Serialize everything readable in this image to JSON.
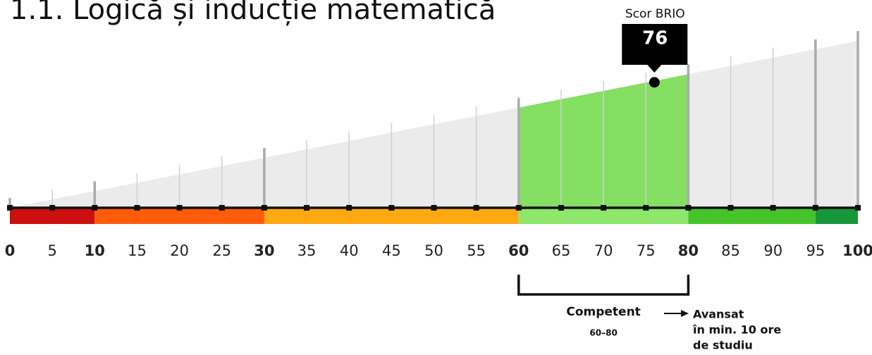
{
  "title": "1.1. Logică și inducție matematică",
  "scale": {
    "lim": [
      0,
      100
    ],
    "ticks": [
      0,
      5,
      10,
      15,
      20,
      25,
      30,
      35,
      40,
      45,
      50,
      55,
      60,
      65,
      70,
      75,
      80,
      85,
      90,
      95,
      100
    ],
    "major_ticks": [
      0,
      10,
      30,
      60,
      80,
      100
    ],
    "bands": [
      {
        "from": 0,
        "to": 10,
        "color": "#cc1010"
      },
      {
        "from": 10,
        "to": 30,
        "color": "#ff5c0a"
      },
      {
        "from": 30,
        "to": 60,
        "color": "#ffa812"
      },
      {
        "from": 60,
        "to": 80,
        "color": "#8ee66b"
      },
      {
        "from": 80,
        "to": 95,
        "color": "#44c42a"
      },
      {
        "from": 95,
        "to": 100,
        "color": "#17963a"
      }
    ]
  },
  "score": {
    "label": "Scor BRIO",
    "value": 76
  },
  "level": {
    "name": "Competent",
    "range": "60–80",
    "from": 60,
    "to": 80,
    "color": "#84df63"
  },
  "next": {
    "name": "Avansat",
    "lines": [
      "în min. 10 ore",
      "de studiu"
    ]
  }
}
